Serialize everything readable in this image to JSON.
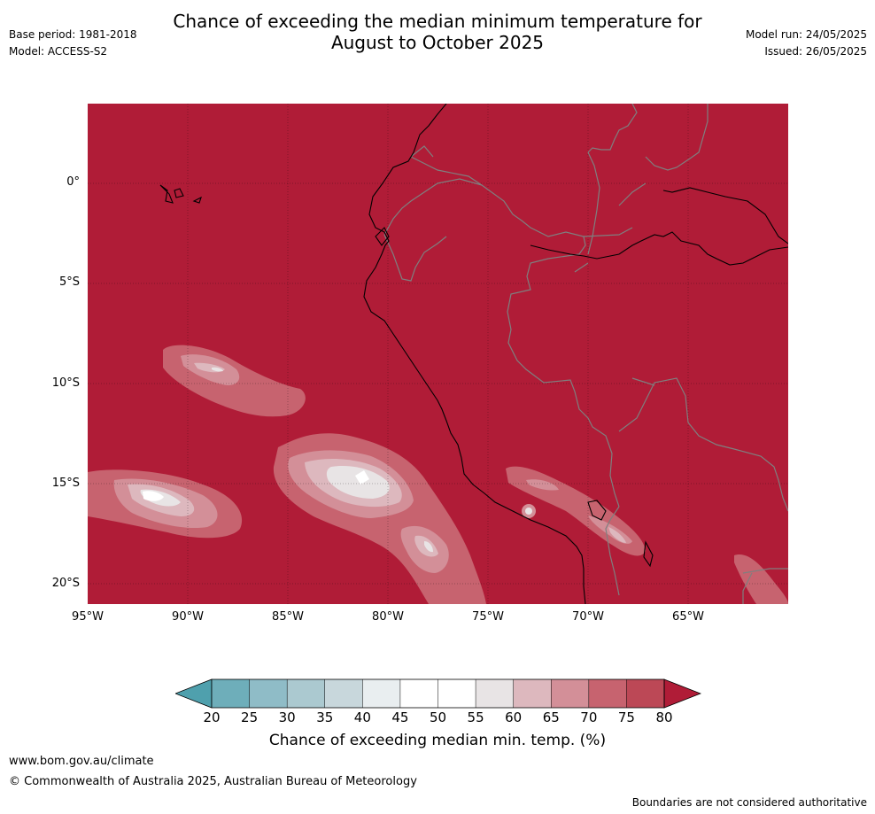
{
  "title": {
    "line1": "Chance of exceeding the median minimum temperature for",
    "line2": "August to October 2025"
  },
  "meta_left": {
    "base_period": "Base period: 1981-2018",
    "model": "Model: ACCESS-S2"
  },
  "meta_right": {
    "model_run": "Model run: 24/05/2025",
    "issued": "Issued: 26/05/2025"
  },
  "map": {
    "lat_labels": [
      "0°",
      "5°S",
      "10°S",
      "15°S",
      "20°S"
    ],
    "lon_labels": [
      "95°W",
      "90°W",
      "85°W",
      "80°W",
      "75°W",
      "70°W",
      "65°W"
    ],
    "background_color": "#b01c37",
    "country_border_color": "#7f7f7f",
    "coastline_color": "#000000"
  },
  "colorbar": {
    "ticks": [
      "20",
      "25",
      "30",
      "35",
      "40",
      "45",
      "50",
      "55",
      "60",
      "65",
      "70",
      "75",
      "80"
    ],
    "colors": [
      "#4fa0ad",
      "#6eaeba",
      "#8fbcc7",
      "#abc9d0",
      "#c8d7dc",
      "#e9eef0",
      "#ffffff",
      "#ffffff",
      "#e8e4e5",
      "#ddb8be",
      "#d38f98",
      "#c7636f",
      "#bc4856",
      "#b01c37"
    ],
    "label": "Chance of exceeding median min. temp. (%)"
  },
  "footer": {
    "url": "www.bom.gov.au/climate",
    "copyright": "© Commonwealth of Australia 2025, Australian Bureau of Meteorology",
    "note": "Boundaries are not considered authoritative"
  }
}
